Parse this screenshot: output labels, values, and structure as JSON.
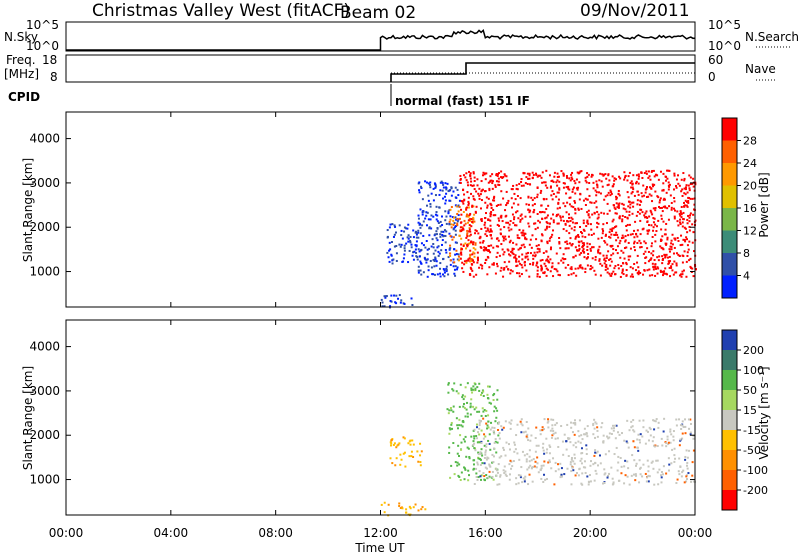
{
  "header": {
    "title": "Christmas Valley West (fitACF)",
    "beam": "Beam 02",
    "date": "09/Nov/2011"
  },
  "top_panels": {
    "nsky_label": "N.Sky",
    "nsky_ticks": [
      "10^5",
      "10^0"
    ],
    "nsearch_label": "N.Search",
    "nsearch_ticks": [
      "10^5",
      "10^0"
    ],
    "freq_label": "Freq.",
    "freq_unit": "[MHz]",
    "freq_ticks": [
      "18",
      "8"
    ],
    "nave_label": "Nave",
    "nave_ticks": [
      "60",
      "0"
    ],
    "cpid_label": "CPID",
    "cpid_text": "normal (fast) 151 IF"
  },
  "chart_data": [
    {
      "type": "heatmap",
      "panel": "power",
      "ylabel": "Slant Range [km]",
      "yticks": [
        "1000",
        "2000",
        "3000",
        "4000"
      ],
      "ylim": [
        200,
        4600
      ],
      "xlim": [
        0,
        24
      ],
      "xlabel": "Time UT",
      "colorbar_label": "Power [dB]",
      "colorbar_ticks": [
        "28",
        "24",
        "20",
        "16",
        "12",
        "8",
        "4"
      ],
      "colorbar_colors": [
        "#ff0000",
        "#ff6000",
        "#ff9900",
        "#e0c000",
        "#7ab648",
        "#3c8c78",
        "#3050a8",
        "#0020ff"
      ],
      "regions": [
        {
          "t0": 12.0,
          "t1": 13.2,
          "r0": 200,
          "r1": 500,
          "level": 8
        },
        {
          "t0": 12.2,
          "t1": 13.6,
          "r0": 1200,
          "r1": 2100,
          "level": 8
        },
        {
          "t0": 13.4,
          "t1": 15.0,
          "r0": 900,
          "r1": 3100,
          "level": 10
        },
        {
          "t0": 14.6,
          "t1": 15.6,
          "r0": 1200,
          "r1": 2500,
          "level": 20
        },
        {
          "t0": 15.0,
          "t1": 24.0,
          "r0": 900,
          "r1": 3300,
          "level": 28
        }
      ]
    },
    {
      "type": "heatmap",
      "panel": "velocity",
      "ylabel": "Slant Range [km]",
      "yticks": [
        "1000",
        "2000",
        "3000",
        "4000"
      ],
      "ylim": [
        200,
        4600
      ],
      "xlim": [
        0,
        24
      ],
      "xlabel": "Time UT",
      "colorbar_label": "Velocity [m s⁻¹]",
      "colorbar_ticks": [
        "200",
        "100",
        "50",
        "15",
        "-15",
        "-50",
        "-100",
        "-200"
      ],
      "colorbar_colors": [
        "#2040b0",
        "#3a7a6a",
        "#55b84a",
        "#a6d860",
        "#c8c8c0",
        "#ffc000",
        "#ff9000",
        "#ff6000",
        "#ff0000"
      ],
      "regions": [
        {
          "t0": 12.0,
          "t1": 13.8,
          "r0": 200,
          "r1": 500,
          "level": -50
        },
        {
          "t0": 12.3,
          "t1": 13.6,
          "r0": 1300,
          "r1": 2000,
          "level": -50
        },
        {
          "t0": 14.5,
          "t1": 16.5,
          "r0": 1000,
          "r1": 3200,
          "level": 50
        },
        {
          "t0": 15.5,
          "t1": 24.0,
          "r0": 900,
          "r1": 2400,
          "level": 0
        }
      ]
    }
  ],
  "x_axis": {
    "ticks": [
      "00:00",
      "04:00",
      "08:00",
      "12:00",
      "16:00",
      "20:00",
      "00:00"
    ],
    "label": "Time UT"
  }
}
